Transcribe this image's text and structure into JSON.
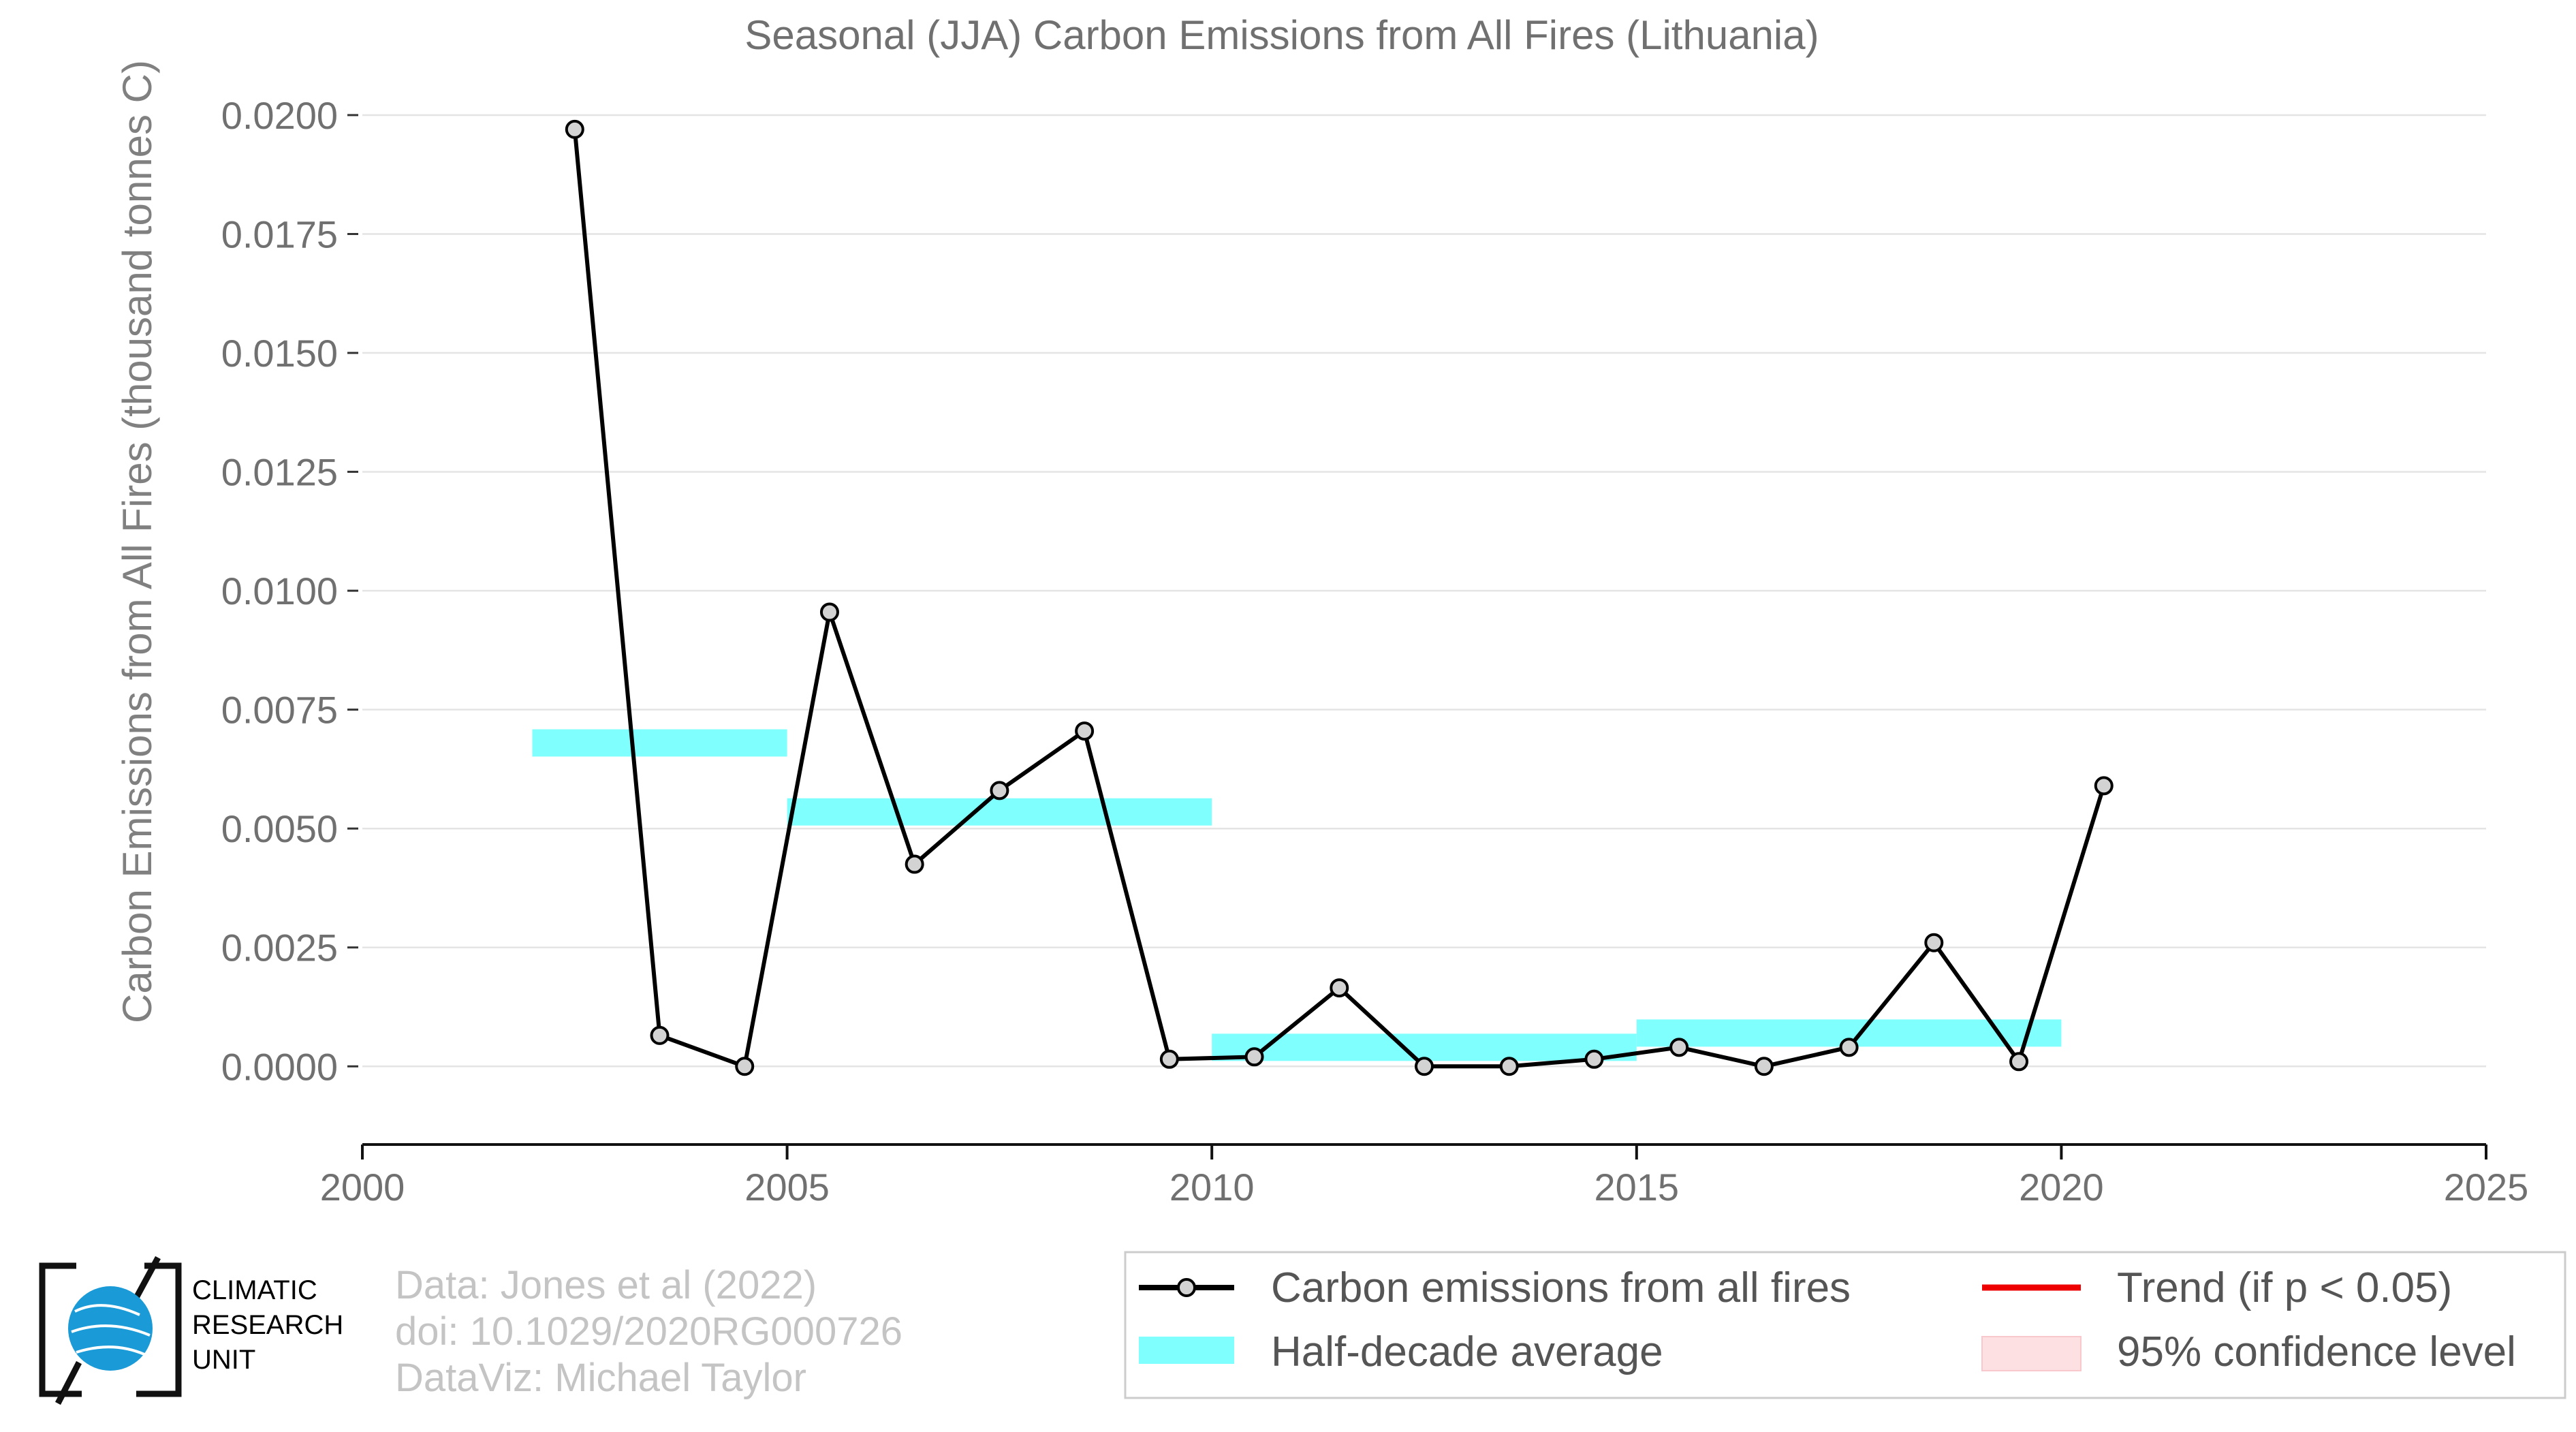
{
  "chart_data": {
    "type": "line",
    "title": "Seasonal (JJA) Carbon Emissions from All Fires (Lithuania)",
    "xlabel": "",
    "ylabel": "Carbon Emissions from All Fires (thousand tonnes C)",
    "xlim": [
      2000,
      2025
    ],
    "ylim": [
      -0.0015,
      0.0203
    ],
    "x_ticks": [
      "2000",
      "2005",
      "2010",
      "2015",
      "2020",
      "2025"
    ],
    "y_ticks": [
      "0.0000",
      "0.0025",
      "0.0050",
      "0.0075",
      "0.0100",
      "0.0125",
      "0.0150",
      "0.0175",
      "0.0200"
    ],
    "grid": "horizontal",
    "series": [
      {
        "name": "Carbon emissions from all fires",
        "color": "#000000",
        "marker_fill": "#d3d3d3",
        "x": [
          2002.5,
          2003.5,
          2004.5,
          2005.5,
          2006.5,
          2007.5,
          2008.5,
          2009.5,
          2010.5,
          2011.5,
          2012.5,
          2013.5,
          2014.5,
          2015.5,
          2016.5,
          2017.5,
          2018.5,
          2019.5,
          2020.5
        ],
        "values": [
          0.0197,
          0.00065,
          0.0,
          0.00955,
          0.00425,
          0.0058,
          0.00705,
          0.00015,
          0.0002,
          0.00165,
          0.0,
          0.0,
          0.00015,
          0.0004,
          0.0,
          0.0004,
          0.0026,
          0.0001,
          0.0059
        ]
      }
    ],
    "half_decade_average": {
      "name": "Half-decade average",
      "color": "#80ffff",
      "segments": [
        {
          "x_start": 2002,
          "x_end": 2005,
          "value": 0.0068
        },
        {
          "x_start": 2005,
          "x_end": 2010,
          "value": 0.00535
        },
        {
          "x_start": 2010,
          "x_end": 2015,
          "value": 0.0004
        },
        {
          "x_start": 2015,
          "x_end": 2020,
          "value": 0.0007
        }
      ]
    },
    "legend": {
      "placement": "bottom-right",
      "entries": [
        {
          "label": "Carbon emissions from all fires",
          "kind": "line-marker",
          "color": "#000000"
        },
        {
          "label": "Trend (if p < 0.05)",
          "kind": "line",
          "color": "#ee0000"
        },
        {
          "label": "Half-decade average",
          "kind": "band",
          "color": "#80ffff"
        },
        {
          "label": "95% confidence level",
          "kind": "band",
          "color": "#fde0e2"
        }
      ]
    }
  },
  "credits": {
    "line1": "Data: Jones et al (2022)",
    "line2": "doi: 10.1029/2020RG000726",
    "line3": "DataViz: Michael Taylor"
  },
  "logo": {
    "line1": "CLIMATIC",
    "line2": "RESEARCH",
    "line3": "UNIT",
    "color": "#1a9ad6"
  }
}
